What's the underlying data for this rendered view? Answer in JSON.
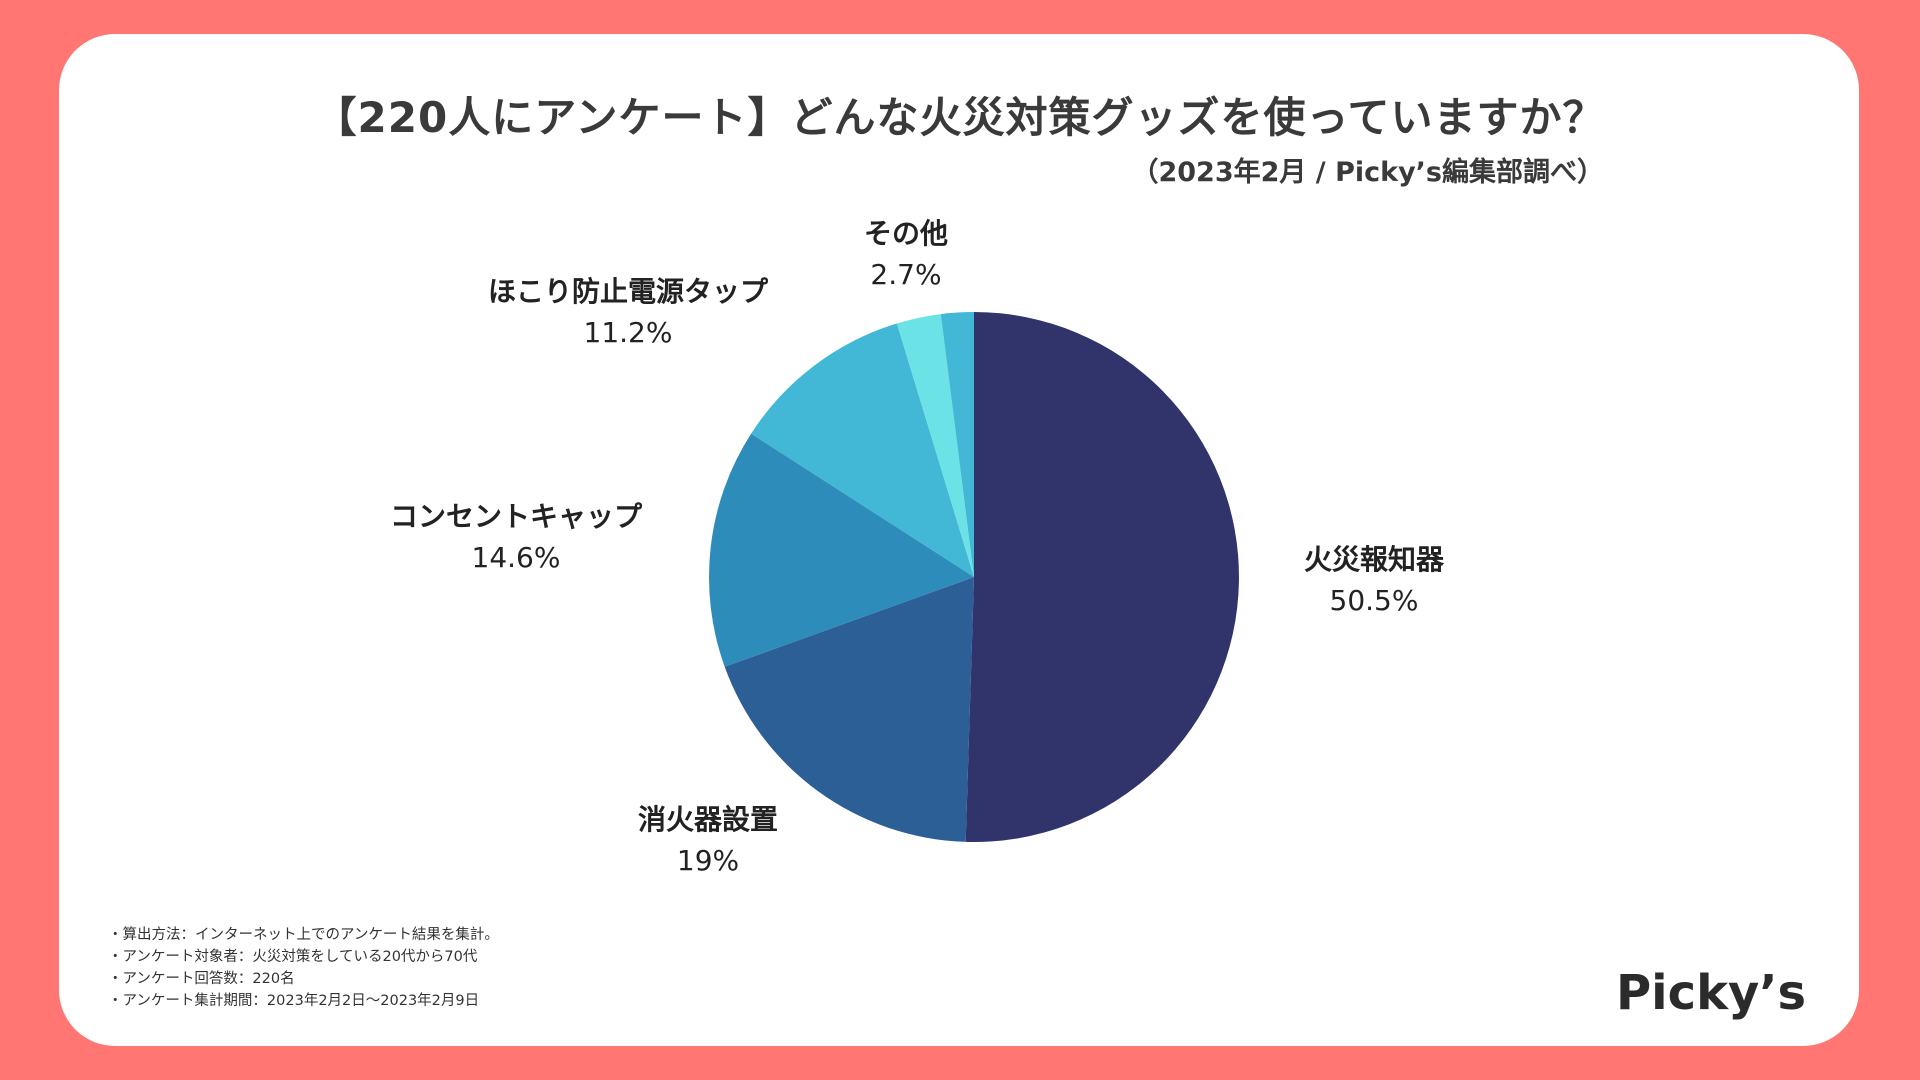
{
  "chart_data": {
    "type": "pie",
    "title": "【220人にアンケート】どんな火災対策グッズを使っていますか？",
    "subtitle": "（2023年2月 / Picky’s編集部調べ）",
    "slices": [
      {
        "label": "火災報知器",
        "value": 50.5,
        "value_label": "50.5%",
        "color": "#30346B"
      },
      {
        "label": "消火器設置",
        "value": 19,
        "value_label": "19%",
        "color": "#2D5F97"
      },
      {
        "label": "コンセントキャップ",
        "value": 14.6,
        "value_label": "14.6%",
        "color": "#2E8CBA"
      },
      {
        "label": "ほこり防止電源タップ",
        "value": 11.2,
        "value_label": "11.2%",
        "color": "#42B7D6"
      },
      {
        "label": "その他",
        "value": 2.7,
        "value_label": "2.7%",
        "color": "#6BE3E6"
      },
      {
        "label": "",
        "value": 2.0,
        "value_label": "",
        "color": "#42B7D6"
      }
    ]
  },
  "notes": [
    "・算出方法：インターネット上でのアンケート結果を集計。",
    "・アンケート対象者：火災対策をしている20代から70代",
    "・アンケート回答数：220名",
    "・アンケート集計期間：2023年2月2日〜2023年2月9日"
  ],
  "brand": {
    "logo_text": "Picky’s",
    "background_color": "#FF7672"
  }
}
